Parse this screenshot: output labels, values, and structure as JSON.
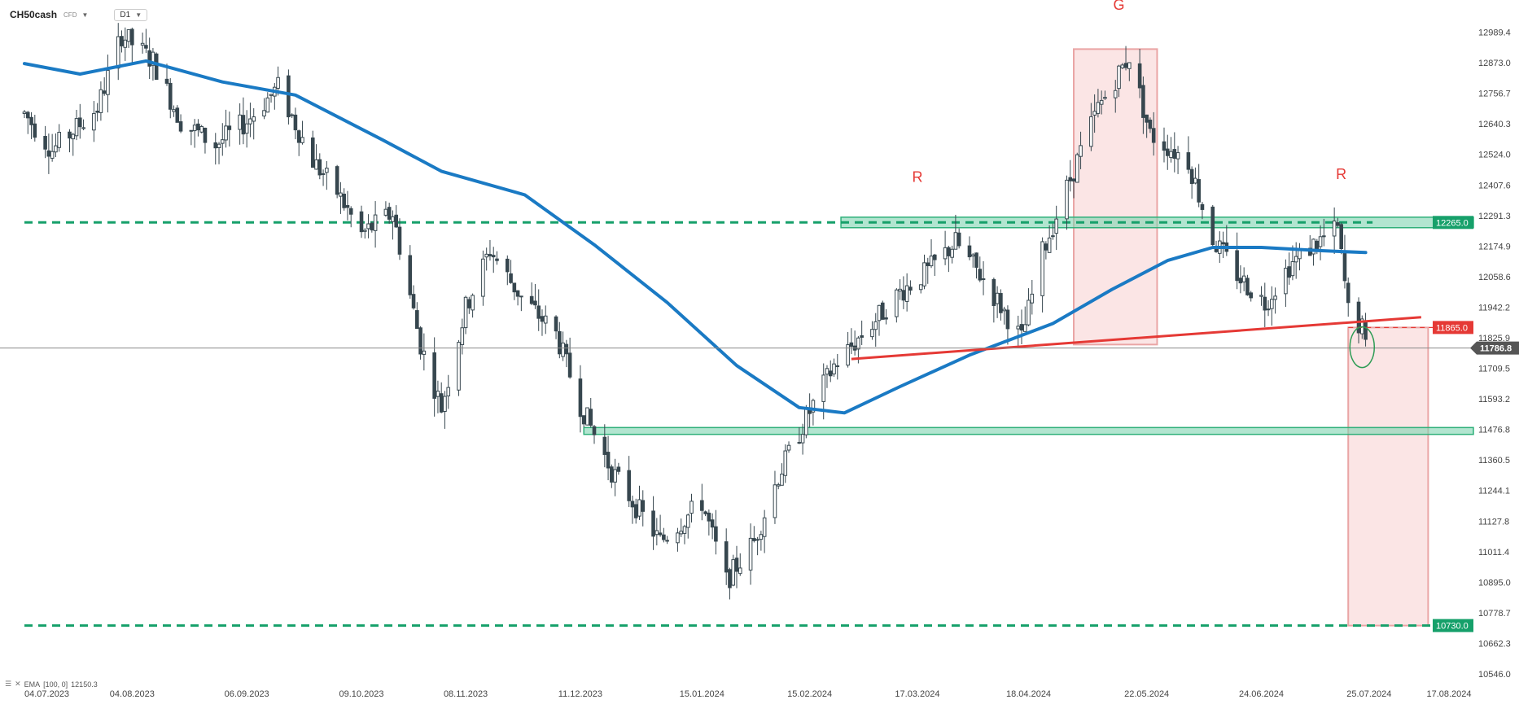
{
  "toolbar": {
    "symbol": "CH50cash",
    "type": "CFD",
    "timeframe": "D1"
  },
  "indicator": {
    "label": "EMA",
    "params": "[100, 0]",
    "value": "12150.3"
  },
  "colors": {
    "bull_candle": "#ffffff",
    "bear_candle": "#37474f",
    "wick": "#37474f",
    "ema": "#1a7ac4",
    "support_line": "#16a06a",
    "zone_fill": "#7fd3b0",
    "neckline": "#e53935",
    "target_fill": "#f8d0d0",
    "price_line": "#888888"
  },
  "chart_data": {
    "type": "candlestick",
    "y_range": [
      10546.0,
      13050.0
    ],
    "x_range": [
      "2023-07-04",
      "2024-08-17"
    ],
    "y_ticks": [
      "12989.4",
      "12873.0",
      "12756.7",
      "12640.3",
      "12524.0",
      "12407.6",
      "12291.3",
      "12174.9",
      "12058.6",
      "11942.2",
      "11825.9",
      "11709.5",
      "11593.2",
      "11476.8",
      "11360.5",
      "11244.1",
      "11127.8",
      "11011.4",
      "10895.0",
      "10778.7",
      "10662.3",
      "10546.0"
    ],
    "x_ticks": [
      "04.07.2023",
      "04.08.2023",
      "06.09.2023",
      "09.10.2023",
      "08.11.2023",
      "11.12.2023",
      "15.01.2024",
      "15.02.2024",
      "17.03.2024",
      "18.04.2024",
      "22.05.2024",
      "24.06.2024",
      "25.07.2024",
      "17.08.2024"
    ],
    "price_anchors": [
      [
        "2023-07-04",
        12680
      ],
      [
        "2023-07-12",
        12540
      ],
      [
        "2023-07-25",
        12700
      ],
      [
        "2023-08-01",
        12980
      ],
      [
        "2023-08-10",
        12880
      ],
      [
        "2023-08-18",
        12650
      ],
      [
        "2023-08-28",
        12560
      ],
      [
        "2023-09-06",
        12650
      ],
      [
        "2023-09-15",
        12780
      ],
      [
        "2023-09-25",
        12500
      ],
      [
        "2023-10-02",
        12380
      ],
      [
        "2023-10-09",
        12220
      ],
      [
        "2023-10-18",
        12300
      ],
      [
        "2023-10-26",
        11800
      ],
      [
        "2023-11-01",
        11560
      ],
      [
        "2023-11-08",
        11940
      ],
      [
        "2023-11-15",
        12160
      ],
      [
        "2023-11-24",
        11980
      ],
      [
        "2023-12-04",
        11840
      ],
      [
        "2023-12-11",
        11570
      ],
      [
        "2023-12-20",
        11320
      ],
      [
        "2024-01-03",
        11050
      ],
      [
        "2024-01-15",
        11200
      ],
      [
        "2024-01-22",
        10900
      ],
      [
        "2024-01-30",
        11050
      ],
      [
        "2024-02-06",
        11300
      ],
      [
        "2024-02-14",
        11520
      ],
      [
        "2024-02-22",
        11720
      ],
      [
        "2024-03-04",
        11880
      ],
      [
        "2024-03-12",
        12000
      ],
      [
        "2024-03-20",
        12080
      ],
      [
        "2024-03-28",
        12190
      ],
      [
        "2024-04-05",
        12050
      ],
      [
        "2024-04-16",
        11820
      ],
      [
        "2024-04-22",
        12150
      ],
      [
        "2024-05-02",
        12500
      ],
      [
        "2024-05-08",
        12700
      ],
      [
        "2024-05-17",
        12900
      ],
      [
        "2024-05-23",
        12600
      ],
      [
        "2024-06-03",
        12500
      ],
      [
        "2024-06-10",
        12200
      ],
      [
        "2024-06-18",
        12050
      ],
      [
        "2024-06-25",
        11960
      ],
      [
        "2024-07-02",
        12100
      ],
      [
        "2024-07-09",
        12180
      ],
      [
        "2024-07-16",
        12240
      ],
      [
        "2024-07-19",
        11930
      ],
      [
        "2024-07-23",
        11860
      ],
      [
        "2024-07-24",
        11786.8
      ]
    ],
    "ema": {
      "name": "EMA [100, 0]",
      "points": [
        [
          "2023-07-04",
          12870
        ],
        [
          "2023-07-20",
          12830
        ],
        [
          "2023-08-08",
          12880
        ],
        [
          "2023-08-30",
          12800
        ],
        [
          "2023-09-20",
          12750
        ],
        [
          "2023-10-15",
          12580
        ],
        [
          "2023-11-01",
          12460
        ],
        [
          "2023-11-25",
          12370
        ],
        [
          "2023-12-15",
          12180
        ],
        [
          "2024-01-05",
          11960
        ],
        [
          "2024-01-25",
          11720
        ],
        [
          "2024-02-12",
          11560
        ],
        [
          "2024-02-25",
          11540
        ],
        [
          "2024-03-12",
          11640
        ],
        [
          "2024-04-01",
          11760
        ],
        [
          "2024-04-25",
          11880
        ],
        [
          "2024-05-12",
          12010
        ],
        [
          "2024-05-28",
          12120
        ],
        [
          "2024-06-10",
          12170
        ],
        [
          "2024-06-24",
          12170
        ],
        [
          "2024-07-10",
          12158
        ],
        [
          "2024-07-24",
          12150.3
        ]
      ]
    },
    "support_lines": [
      {
        "level": 12265.0,
        "label": "12265.0",
        "style": "dashed",
        "from": "2023-07-04",
        "to": "2024-07-26"
      },
      {
        "level": 10730.0,
        "label": "10730.0",
        "style": "dashed",
        "from": "2023-07-04",
        "to": "2024-08-17"
      }
    ],
    "zones": [
      {
        "low": 12245.0,
        "high": 12285.0,
        "from": "2024-02-24",
        "to": "2024-08-17"
      },
      {
        "low": 11458.0,
        "high": 11484.0,
        "from": "2023-12-12",
        "to": "2024-08-17"
      }
    ],
    "neckline": {
      "from": [
        "2024-02-27",
        11745.0
      ],
      "to": [
        "2024-08-09",
        11904.0
      ],
      "label": "11865.0",
      "dashed_level": 11865.0
    },
    "current_price": {
      "value": 11786.8,
      "label": "11786.8"
    },
    "boxes": [
      {
        "from": "2024-05-01",
        "to": "2024-05-25",
        "low": 11800.0,
        "high": 12925.0,
        "label": "G"
      },
      {
        "from": "2024-07-19",
        "to": "2024-08-11",
        "low": 10730.0,
        "high": 11865.0
      }
    ],
    "annotations": [
      {
        "text": "R",
        "date": "2024-03-17",
        "price": 12420.0
      },
      {
        "text": "G",
        "date": "2024-05-14",
        "price": 13075.0
      },
      {
        "text": "R",
        "date": "2024-07-17",
        "price": 12430.0
      }
    ],
    "highlight": {
      "date": "2024-07-23",
      "price": 11790.0
    }
  }
}
